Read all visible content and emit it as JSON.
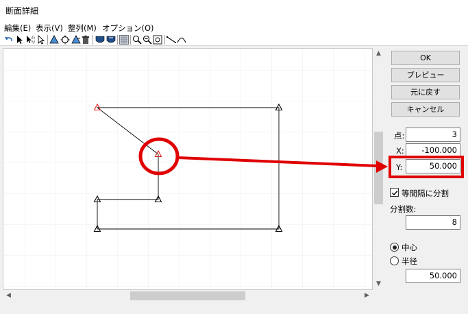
{
  "window": {
    "title": "断面詳細"
  },
  "menu": [
    {
      "label": "編集(E)"
    },
    {
      "label": "表示(V)"
    },
    {
      "label": "整列(M)"
    },
    {
      "label": "オプション(O)"
    }
  ],
  "toolbar": {
    "icons": [
      "undo-icon",
      "select-arrow-icon",
      "multi-select-icon",
      "pointer-icon",
      "shape-tool-icon",
      "rotate-icon",
      "shape-tool-2-icon",
      "delete-icon",
      "layer-front-icon",
      "layer-back-icon",
      "grid-icon",
      "zoom-in-icon",
      "zoom-out-icon",
      "zoom-fit-icon",
      "line-tool-icon",
      "arc-tool-icon"
    ]
  },
  "buttons": {
    "ok": "OK",
    "preview": "プレビュー",
    "undo": "元に戻す",
    "cancel": "キャンセル"
  },
  "fields": {
    "point": {
      "label": "点:",
      "value": "3"
    },
    "x": {
      "label": "X:",
      "value": "-100.000"
    },
    "y": {
      "label": "Y:",
      "value": "50.000"
    },
    "split_equal": {
      "label": "等間隔に分割",
      "checked": true
    },
    "split_count": {
      "label": "分割数:",
      "value": "8"
    },
    "center": {
      "label": "中心",
      "selected": true
    },
    "radius": {
      "label": "半径",
      "selected": false,
      "value": "50.000"
    }
  },
  "colors": {
    "annotation": "#e00000",
    "selected_vertex": "#e02020",
    "vertex": "#000000"
  }
}
